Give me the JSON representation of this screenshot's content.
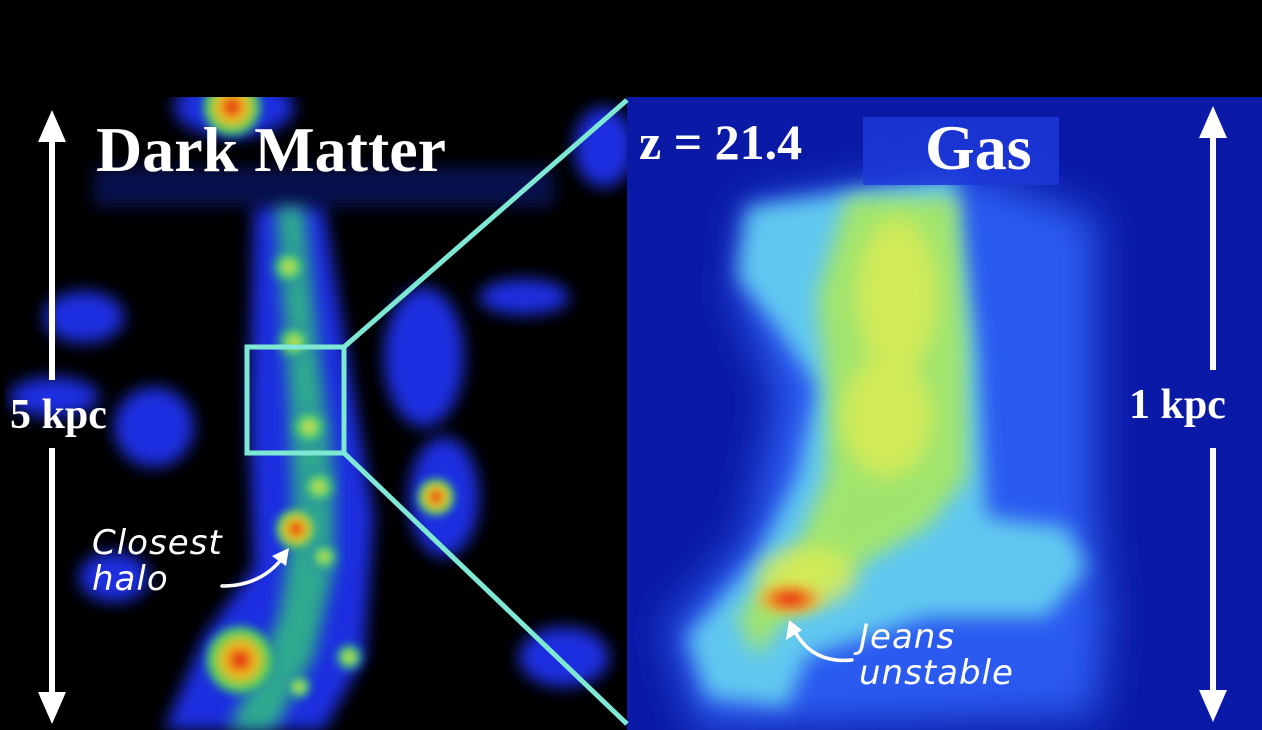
{
  "panels": {
    "dark_matter": {
      "title": "Dark Matter",
      "scale_label": "5 kpc",
      "annotation": "Closest\nhalo"
    },
    "gas": {
      "title": "Gas",
      "redshift_label": "z = 21.4",
      "scale_label": "1 kpc",
      "annotation": "Jeans\nunstable"
    }
  },
  "colors": {
    "zoom_box": "#7fe8d4",
    "background": "#000000",
    "gas_background": "#0a1aa6"
  }
}
